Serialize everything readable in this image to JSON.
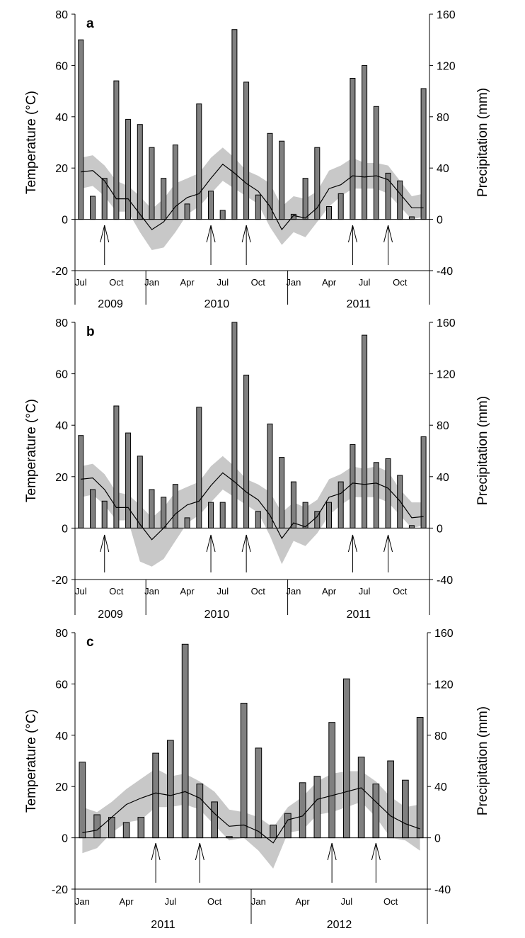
{
  "chart_data": [
    {
      "type": "bar",
      "panel_label": "a",
      "ylabel": "Temperature (°C)",
      "y2label": "Precipitation (mm)",
      "ylim": [
        -20,
        80
      ],
      "y2lim": [
        -40,
        160
      ],
      "yticks": [
        "-20",
        "0",
        "20",
        "40",
        "60",
        "80"
      ],
      "y2ticks": [
        "-40",
        "0",
        "40",
        "80",
        "120",
        "160"
      ],
      "x_month_labels": [
        {
          "i": 0,
          "label": "Jul"
        },
        {
          "i": 3,
          "label": "Oct"
        },
        {
          "i": 6,
          "label": "Jan"
        },
        {
          "i": 9,
          "label": "Apr"
        },
        {
          "i": 12,
          "label": "Jul"
        },
        {
          "i": 15,
          "label": "Oct"
        },
        {
          "i": 18,
          "label": "Jan"
        },
        {
          "i": 21,
          "label": "Apr"
        },
        {
          "i": 24,
          "label": "Jul"
        },
        {
          "i": 27,
          "label": "Oct"
        }
      ],
      "year_labels": [
        {
          "label": "2009",
          "from": 0,
          "to": 5
        },
        {
          "label": "2010",
          "from": 6,
          "to": 17
        },
        {
          "label": "2011",
          "from": 18,
          "to": 29
        }
      ],
      "precipitation_mm": [
        140,
        18,
        32,
        108,
        78,
        74,
        56,
        32,
        58,
        12,
        90,
        22,
        7,
        148,
        107,
        19,
        67,
        61,
        4,
        32,
        56,
        10,
        20,
        110,
        120,
        88,
        36,
        30,
        2,
        102
      ],
      "temperature_mean": [
        18.5,
        19,
        15,
        8,
        8,
        2,
        -4,
        -1,
        5,
        8.5,
        10,
        16,
        21.5,
        18,
        14,
        11,
        5,
        -4,
        1.5,
        0.5,
        4.5,
        12,
        13.5,
        17,
        16.5,
        17,
        15.5,
        10,
        4.5,
        4.5
      ],
      "temperature_max": [
        24,
        25,
        21,
        15,
        13,
        9,
        4,
        8,
        14,
        16,
        18,
        24,
        28,
        24,
        19,
        17,
        14,
        5,
        9,
        8,
        11,
        19,
        21,
        24,
        22,
        22,
        21,
        15,
        9,
        10
      ],
      "temperature_min": [
        12,
        13,
        9,
        3,
        3,
        -5,
        -12,
        -11,
        -5,
        2,
        5,
        10,
        15,
        12,
        9,
        6,
        -3,
        -10,
        -5,
        -7,
        -1,
        5,
        9,
        12,
        12,
        12,
        10,
        5,
        0,
        1
      ],
      "arrows_at": [
        2,
        11,
        14,
        23,
        26
      ]
    },
    {
      "type": "bar",
      "panel_label": "b",
      "ylabel": "Temperature (°C)",
      "y2label": "Precipitation (mm)",
      "ylim": [
        -20,
        80
      ],
      "y2lim": [
        -40,
        160
      ],
      "yticks": [
        "-20",
        "0",
        "20",
        "40",
        "60",
        "80"
      ],
      "y2ticks": [
        "-40",
        "0",
        "40",
        "80",
        "120",
        "160"
      ],
      "x_month_labels": [
        {
          "i": 0,
          "label": "Jul"
        },
        {
          "i": 3,
          "label": "Oct"
        },
        {
          "i": 6,
          "label": "Jan"
        },
        {
          "i": 9,
          "label": "Apr"
        },
        {
          "i": 12,
          "label": "Jul"
        },
        {
          "i": 15,
          "label": "Oct"
        },
        {
          "i": 18,
          "label": "Jan"
        },
        {
          "i": 21,
          "label": "Apr"
        },
        {
          "i": 24,
          "label": "Jul"
        },
        {
          "i": 27,
          "label": "Oct"
        }
      ],
      "year_labels": [
        {
          "label": "2009",
          "from": 0,
          "to": 5
        },
        {
          "label": "2010",
          "from": 6,
          "to": 17
        },
        {
          "label": "2011",
          "from": 18,
          "to": 29
        }
      ],
      "precipitation_mm": [
        72,
        30,
        21,
        95,
        74,
        56,
        30,
        24,
        34,
        8,
        94,
        20,
        20,
        160,
        119,
        13,
        81,
        55,
        36,
        20,
        13,
        20,
        36,
        65,
        150,
        51,
        54,
        41,
        2,
        71
      ],
      "temperature_mean": [
        19,
        19.5,
        15,
        8,
        8,
        1.5,
        -4.5,
        0,
        5.5,
        9,
        10.5,
        16.5,
        21.5,
        18,
        14,
        11,
        5,
        -4,
        2,
        0.5,
        4.5,
        12,
        13.5,
        17.5,
        17,
        17.5,
        15.5,
        10.5,
        4,
        4.5
      ],
      "temperature_max": [
        24,
        25,
        21,
        14,
        13,
        9,
        4,
        8,
        14,
        16,
        18,
        24,
        28,
        24,
        19,
        17,
        14,
        6,
        10,
        8,
        11,
        19,
        21,
        24,
        23,
        24,
        22,
        15,
        10,
        10
      ],
      "temperature_min": [
        12,
        13,
        9,
        3,
        3,
        -13,
        -15,
        -12,
        -5,
        2,
        5,
        10,
        15,
        12,
        9,
        6,
        -3,
        -14,
        -5,
        -7,
        -2,
        5,
        9,
        12,
        12,
        12,
        10,
        5,
        0,
        1
      ],
      "arrows_at": [
        2,
        11,
        14,
        23,
        26
      ]
    },
    {
      "type": "bar",
      "panel_label": "c",
      "ylabel": "Temperature (°C)",
      "y2label": "Precipitation (mm)",
      "ylim": [
        -20,
        80
      ],
      "y2lim": [
        -40,
        160
      ],
      "yticks": [
        "-20",
        "0",
        "20",
        "40",
        "60",
        "80"
      ],
      "y2ticks": [
        "-40",
        "0",
        "40",
        "80",
        "120",
        "160"
      ],
      "x_month_labels": [
        {
          "i": 0,
          "label": "Jan"
        },
        {
          "i": 3,
          "label": "Apr"
        },
        {
          "i": 6,
          "label": "Jul"
        },
        {
          "i": 9,
          "label": "Oct"
        },
        {
          "i": 12,
          "label": "Jan"
        },
        {
          "i": 15,
          "label": "Apr"
        },
        {
          "i": 18,
          "label": "Jul"
        },
        {
          "i": 21,
          "label": "Oct"
        }
      ],
      "year_labels": [
        {
          "label": "2011",
          "from": 0,
          "to": 11
        },
        {
          "label": "2012",
          "from": 12,
          "to": 23
        }
      ],
      "precipitation_mm": [
        59,
        18,
        16,
        12,
        16,
        66,
        76,
        151,
        42,
        28,
        1,
        105,
        70,
        10,
        19,
        43,
        48,
        90,
        124,
        63,
        42,
        60,
        45,
        94
      ],
      "temperature_mean": [
        2,
        3,
        8,
        13,
        15.5,
        17.5,
        16.5,
        18,
        15.5,
        9.5,
        4.5,
        5,
        2.5,
        -2,
        7,
        8.5,
        15,
        16.5,
        18,
        19.5,
        14,
        8.5,
        5.5,
        3.5
      ],
      "temperature_max": [
        12,
        10,
        14,
        19,
        23,
        27,
        24,
        25,
        22,
        18,
        11,
        10,
        8,
        4,
        12,
        16,
        22,
        25,
        26,
        26,
        22,
        16,
        12,
        13
      ],
      "temperature_min": [
        -6,
        -4,
        2,
        6,
        7,
        12,
        12,
        13,
        11,
        5,
        -1,
        0,
        -5,
        -12,
        2,
        3,
        9,
        10,
        12,
        14,
        8,
        0,
        -1,
        -5
      ],
      "arrows_at": [
        5,
        8,
        17,
        20
      ]
    }
  ]
}
